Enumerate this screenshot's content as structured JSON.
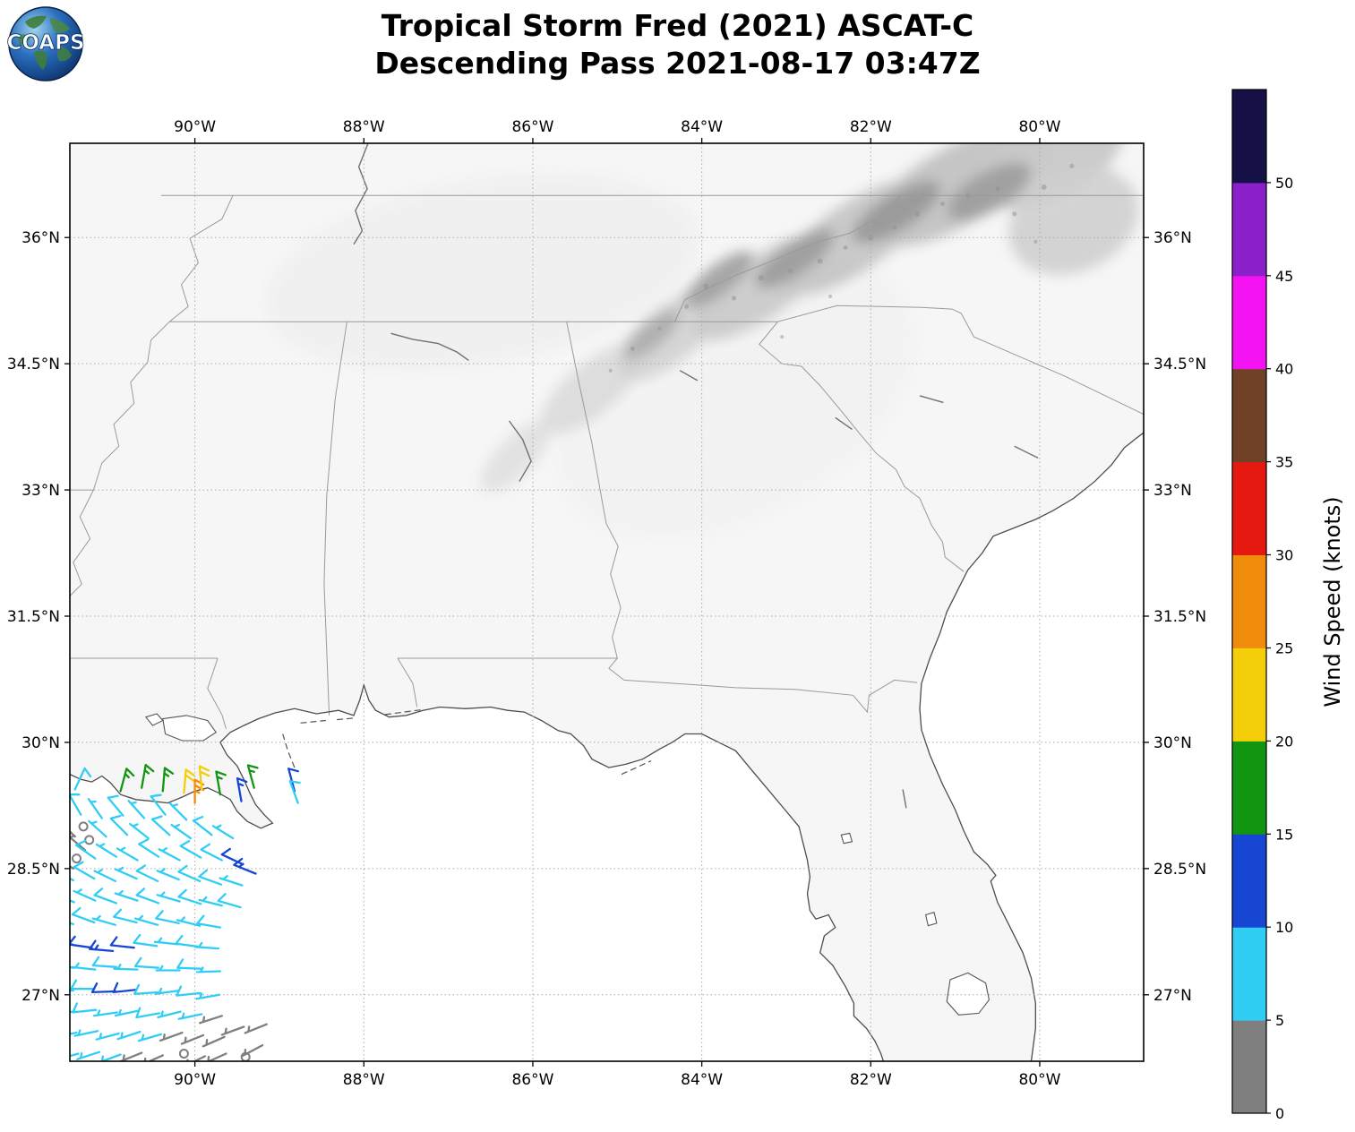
{
  "title": {
    "line1": "Tropical Storm Fred (2021) ASCAT-C",
    "line2": "Descending Pass 2021-08-17 03:47Z"
  },
  "logo": {
    "text": "COAPS"
  },
  "axes": {
    "extent": {
      "lon_min": -91.48,
      "lon_max": -78.77,
      "lat_min": 26.21,
      "lat_max": 37.12
    },
    "lon_ticks": [
      {
        "deg": -90,
        "label": "90°W"
      },
      {
        "deg": -88,
        "label": "88°W"
      },
      {
        "deg": -86,
        "label": "86°W"
      },
      {
        "deg": -84,
        "label": "84°W"
      },
      {
        "deg": -82,
        "label": "82°W"
      },
      {
        "deg": -80,
        "label": "80°W"
      }
    ],
    "lat_ticks": [
      {
        "deg": 36,
        "label": "36°N"
      },
      {
        "deg": 34.5,
        "label": "34.5°N"
      },
      {
        "deg": 33,
        "label": "33°N"
      },
      {
        "deg": 31.5,
        "label": "31.5°N"
      },
      {
        "deg": 30,
        "label": "30°N"
      },
      {
        "deg": 28.5,
        "label": "28.5°N"
      },
      {
        "deg": 27,
        "label": "27°N"
      }
    ]
  },
  "colorbar": {
    "label": "Wind Speed (knots)",
    "ticks": [
      0,
      5,
      10,
      15,
      20,
      25,
      30,
      35,
      40,
      45,
      50
    ],
    "bins": [
      {
        "min": 0,
        "max": 5,
        "color": "#7f7f7f"
      },
      {
        "min": 5,
        "max": 10,
        "color": "#30cdf5"
      },
      {
        "min": 10,
        "max": 15,
        "color": "#1846d4"
      },
      {
        "min": 15,
        "max": 20,
        "color": "#129612"
      },
      {
        "min": 20,
        "max": 25,
        "color": "#f5ce0a"
      },
      {
        "min": 25,
        "max": 30,
        "color": "#f08c0c"
      },
      {
        "min": 30,
        "max": 35,
        "color": "#e51910"
      },
      {
        "min": 35,
        "max": 40,
        "color": "#714127"
      },
      {
        "min": 40,
        "max": 45,
        "color": "#f212f2"
      },
      {
        "min": 45,
        "max": 50,
        "color": "#8b1fc9"
      },
      {
        "min": 50,
        "max": 55,
        "color": "#151045"
      }
    ]
  },
  "chart_data": {
    "type": "wind_barb_map",
    "storm": "Tropical Storm Fred (2021)",
    "instrument": "ASCAT-C",
    "pass": "Descending",
    "time": "2021-08-17 03:47Z",
    "units": "knots",
    "barb_format": [
      "lon_deg",
      "lat_deg",
      "speed_kt",
      "wind_from_dir_deg"
    ],
    "barbs": [
      [
        -91.42,
        29.44,
        8,
        25
      ],
      [
        -90.88,
        29.42,
        16,
        15
      ],
      [
        -90.63,
        29.46,
        17,
        10
      ],
      [
        -90.38,
        29.42,
        16,
        5
      ],
      [
        -90.13,
        29.4,
        21,
        5
      ],
      [
        -90.0,
        29.28,
        26,
        0
      ],
      [
        -89.92,
        29.44,
        21,
        355
      ],
      [
        -89.7,
        29.38,
        16,
        350
      ],
      [
        -89.45,
        29.3,
        13,
        350
      ],
      [
        -89.3,
        29.46,
        16,
        345
      ],
      [
        -88.82,
        29.42,
        12,
        345
      ],
      [
        -88.78,
        29.28,
        8,
        340
      ],
      [
        -91.35,
        29.14,
        8,
        330
      ],
      [
        -91.1,
        29.1,
        7,
        325
      ],
      [
        -90.85,
        29.13,
        8,
        320
      ],
      [
        -90.6,
        29.1,
        7,
        318
      ],
      [
        -90.35,
        29.14,
        8,
        322
      ],
      [
        -90.1,
        29.08,
        7,
        315
      ],
      [
        -91.32,
        29.0,
        2,
        0
      ],
      [
        -91.25,
        28.84,
        2,
        0
      ],
      [
        -91.4,
        28.62,
        2,
        0
      ],
      [
        -91.42,
        28.88,
        4,
        315
      ],
      [
        -91.3,
        28.72,
        3,
        310
      ],
      [
        -91.44,
        28.5,
        4,
        305
      ],
      [
        -91.05,
        28.88,
        7,
        312
      ],
      [
        -90.8,
        28.9,
        8,
        315
      ],
      [
        -90.55,
        28.86,
        7,
        308
      ],
      [
        -90.3,
        28.9,
        8,
        312
      ],
      [
        -90.05,
        28.86,
        7,
        305
      ],
      [
        -89.8,
        28.9,
        8,
        308
      ],
      [
        -89.55,
        28.86,
        7,
        302
      ],
      [
        -91.18,
        28.62,
        8,
        305
      ],
      [
        -90.93,
        28.64,
        7,
        302
      ],
      [
        -90.68,
        28.6,
        7,
        300
      ],
      [
        -90.43,
        28.64,
        8,
        303
      ],
      [
        -90.18,
        28.6,
        7,
        298
      ],
      [
        -89.93,
        28.63,
        8,
        300
      ],
      [
        -89.68,
        28.6,
        8,
        297
      ],
      [
        -89.43,
        28.55,
        12,
        295
      ],
      [
        -89.28,
        28.44,
        13,
        292
      ],
      [
        -91.44,
        28.36,
        7,
        298
      ],
      [
        -91.19,
        28.38,
        8,
        300
      ],
      [
        -90.94,
        28.35,
        7,
        296
      ],
      [
        -90.69,
        28.38,
        7,
        294
      ],
      [
        -90.44,
        28.35,
        8,
        296
      ],
      [
        -90.19,
        28.37,
        7,
        292
      ],
      [
        -89.94,
        28.35,
        8,
        294
      ],
      [
        -89.69,
        28.31,
        8,
        290
      ],
      [
        -89.44,
        28.3,
        7,
        288
      ],
      [
        -91.43,
        28.1,
        8,
        292
      ],
      [
        -91.18,
        28.12,
        7,
        294
      ],
      [
        -90.93,
        28.09,
        8,
        290
      ],
      [
        -90.68,
        28.12,
        7,
        288
      ],
      [
        -90.43,
        28.09,
        8,
        290
      ],
      [
        -90.18,
        28.11,
        7,
        286
      ],
      [
        -89.93,
        28.08,
        8,
        288
      ],
      [
        -89.68,
        28.06,
        7,
        284
      ],
      [
        -89.46,
        28.04,
        8,
        286
      ],
      [
        -91.44,
        27.84,
        7,
        288
      ],
      [
        -91.19,
        27.86,
        8,
        290
      ],
      [
        -90.94,
        27.83,
        7,
        286
      ],
      [
        -90.69,
        27.86,
        8,
        284
      ],
      [
        -90.44,
        27.83,
        7,
        286
      ],
      [
        -90.19,
        27.85,
        8,
        282
      ],
      [
        -89.94,
        27.82,
        7,
        284
      ],
      [
        -89.7,
        27.8,
        8,
        280
      ],
      [
        -91.45,
        27.6,
        8,
        282
      ],
      [
        -91.22,
        27.56,
        12,
        278
      ],
      [
        -90.97,
        27.52,
        13,
        275
      ],
      [
        -90.72,
        27.56,
        12,
        276
      ],
      [
        -90.45,
        27.58,
        8,
        278
      ],
      [
        -90.2,
        27.6,
        7,
        276
      ],
      [
        -89.95,
        27.57,
        8,
        278
      ],
      [
        -89.72,
        27.55,
        7,
        274
      ],
      [
        -91.43,
        27.32,
        8,
        278
      ],
      [
        -91.18,
        27.3,
        7,
        276
      ],
      [
        -90.93,
        27.33,
        8,
        274
      ],
      [
        -90.68,
        27.3,
        7,
        272
      ],
      [
        -90.43,
        27.32,
        8,
        274
      ],
      [
        -90.18,
        27.29,
        7,
        270
      ],
      [
        -89.93,
        27.31,
        8,
        272
      ],
      [
        -89.7,
        27.28,
        7,
        268
      ],
      [
        -91.44,
        27.05,
        7,
        272
      ],
      [
        -91.19,
        27.07,
        8,
        270
      ],
      [
        -90.94,
        27.04,
        12,
        268
      ],
      [
        -90.69,
        27.06,
        12,
        264
      ],
      [
        -90.44,
        27.03,
        8,
        266
      ],
      [
        -90.19,
        27.05,
        7,
        262
      ],
      [
        -89.94,
        27.02,
        8,
        264
      ],
      [
        -89.71,
        27.0,
        7,
        260
      ],
      [
        -91.42,
        26.8,
        7,
        266
      ],
      [
        -91.17,
        26.82,
        8,
        264
      ],
      [
        -90.92,
        26.79,
        7,
        262
      ],
      [
        -90.67,
        26.81,
        7,
        258
      ],
      [
        -90.42,
        26.78,
        8,
        260
      ],
      [
        -90.17,
        26.8,
        7,
        256
      ],
      [
        -89.92,
        26.77,
        6,
        258
      ],
      [
        -89.68,
        26.75,
        4,
        252
      ],
      [
        -91.4,
        26.55,
        7,
        260
      ],
      [
        -91.15,
        26.57,
        6,
        258
      ],
      [
        -90.9,
        26.54,
        7,
        255
      ],
      [
        -90.65,
        26.56,
        6,
        252
      ],
      [
        -90.4,
        26.53,
        7,
        254
      ],
      [
        -90.15,
        26.55,
        4,
        250
      ],
      [
        -89.9,
        26.52,
        4,
        248
      ],
      [
        -89.65,
        26.5,
        3,
        246
      ],
      [
        -89.42,
        26.62,
        4,
        250
      ],
      [
        -91.38,
        26.3,
        6,
        254
      ],
      [
        -91.13,
        26.32,
        6,
        252
      ],
      [
        -90.88,
        26.29,
        6,
        250
      ],
      [
        -90.63,
        26.31,
        4,
        248
      ],
      [
        -90.38,
        26.28,
        4,
        246
      ],
      [
        -90.13,
        26.3,
        2,
        0
      ],
      [
        -89.88,
        26.27,
        3,
        244
      ],
      [
        -89.63,
        26.3,
        4,
        246
      ],
      [
        -89.4,
        26.26,
        2,
        0
      ],
      [
        -89.2,
        26.4,
        3,
        242
      ],
      [
        -89.15,
        26.65,
        4,
        248
      ]
    ]
  }
}
